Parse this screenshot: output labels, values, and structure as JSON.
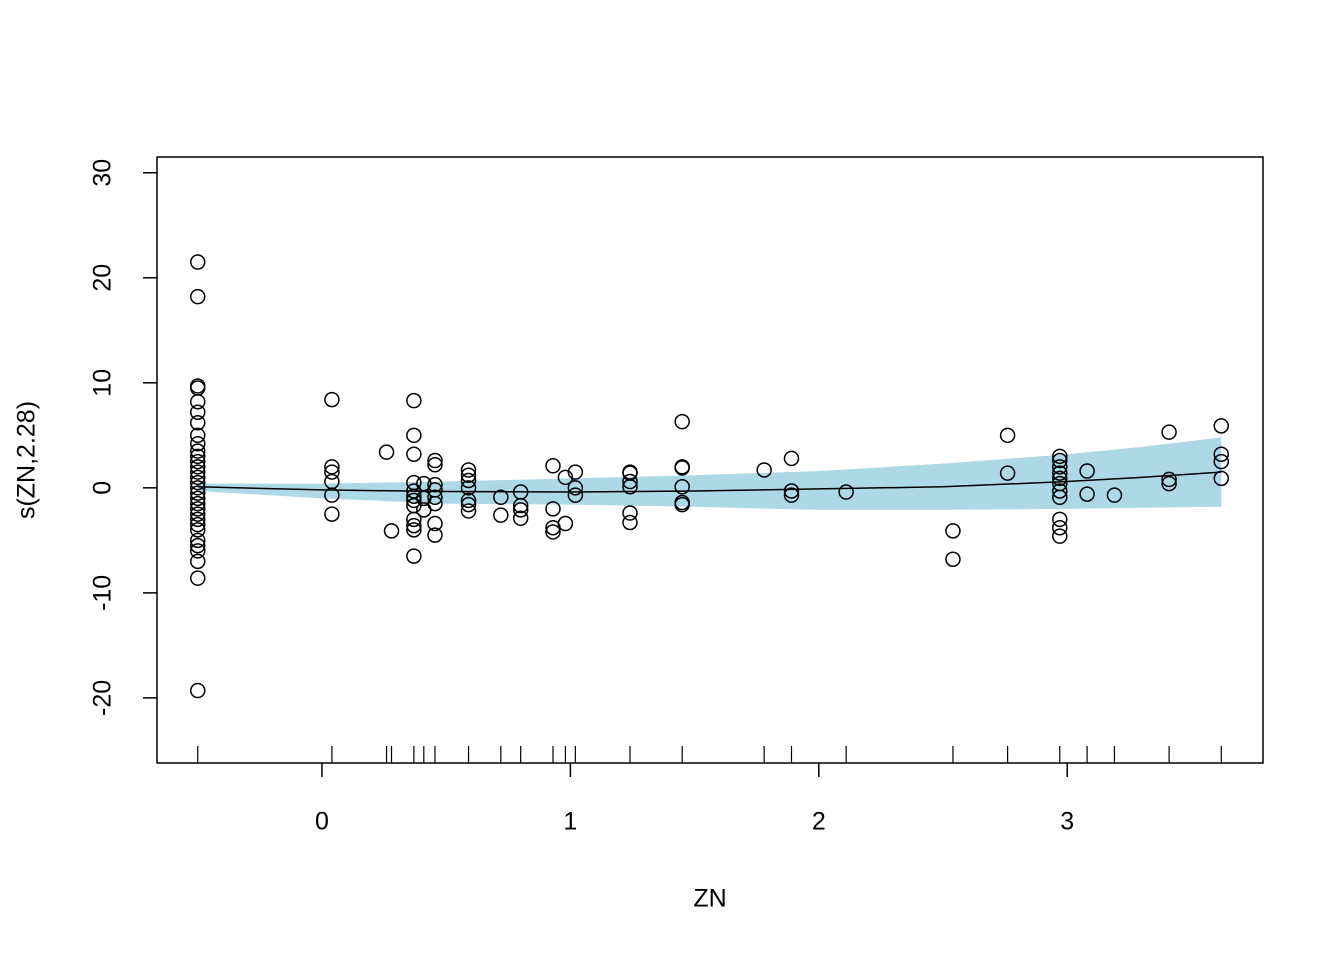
{
  "chart_data": {
    "type": "scatter",
    "x_label": "ZN",
    "y_label": "s(ZN,2.28)",
    "xlim": [
      -0.664,
      3.788
    ],
    "ylim": [
      -26.2,
      31.5
    ],
    "xticks": [
      0,
      1,
      2,
      3
    ],
    "yticks": [
      -20,
      -10,
      0,
      10,
      20,
      30
    ],
    "color": "#000000",
    "band_color": "#add8e6",
    "x": [
      -0.5,
      -0.5,
      -0.5,
      -0.5,
      -0.5,
      -0.5,
      -0.5,
      -0.5,
      -0.5,
      -0.5,
      -0.5,
      -0.5,
      -0.5,
      -0.5,
      -0.5,
      -0.5,
      -0.5,
      -0.5,
      -0.5,
      -0.5,
      -0.5,
      -0.5,
      -0.5,
      -0.5,
      -0.5,
      -0.5,
      -0.5,
      -0.5,
      -0.5,
      -0.5,
      -0.5,
      0.04,
      0.04,
      0.04,
      0.04,
      0.04,
      0.04,
      0.26,
      0.28,
      0.37,
      0.37,
      0.37,
      0.37,
      0.37,
      0.37,
      0.37,
      0.37,
      0.37,
      0.37,
      0.37,
      0.37,
      0.41,
      0.41,
      0.41,
      0.455,
      0.455,
      0.455,
      0.455,
      0.455,
      0.455,
      0.455,
      0.455,
      0.59,
      0.59,
      0.59,
      0.59,
      0.59,
      0.59,
      0.59,
      0.72,
      0.72,
      0.8,
      0.8,
      0.8,
      0.8,
      0.93,
      0.93,
      0.93,
      0.93,
      0.98,
      0.98,
      1.02,
      1.02,
      1.02,
      1.24,
      1.24,
      1.24,
      1.24,
      1.24,
      1.24,
      1.45,
      1.45,
      1.45,
      1.45,
      1.45,
      1.45,
      1.78,
      1.89,
      1.89,
      1.89,
      2.11,
      2.54,
      2.54,
      2.76,
      2.76,
      2.97,
      2.97,
      2.97,
      2.97,
      2.97,
      2.97,
      2.97,
      2.97,
      2.97,
      2.97,
      2.97,
      3.08,
      3.08,
      3.19,
      3.41,
      3.41,
      3.41,
      3.62,
      3.62,
      3.62,
      3.62
    ],
    "values": [
      21.5,
      18.2,
      9.7,
      9.5,
      8.2,
      7.2,
      6.2,
      5.0,
      4.2,
      3.5,
      3.0,
      2.5,
      2.0,
      1.5,
      1.0,
      0.5,
      0,
      -0.5,
      -1.0,
      -1.5,
      -2.0,
      -2.5,
      -3.0,
      -3.5,
      -4.0,
      -5.0,
      -5.5,
      -6.0,
      -7.0,
      -8.6,
      -19.3,
      2.0,
      1.5,
      0.6,
      -0.7,
      -2.5,
      8.4,
      3.4,
      -4.1,
      8.3,
      5.0,
      3.2,
      0.5,
      -0.3,
      -0.8,
      -1.2,
      -1.7,
      -3.0,
      -3.6,
      -4.0,
      -6.5,
      0.4,
      -1.0,
      -2.1,
      2.6,
      2.2,
      0.3,
      -0.2,
      -0.9,
      -1.5,
      -3.4,
      -4.5,
      1.7,
      1.2,
      0.7,
      0,
      -1.2,
      -1.6,
      -2.2,
      -0.9,
      -2.6,
      -0.4,
      -1.7,
      -2.1,
      -2.9,
      2.1,
      -2.0,
      -3.8,
      -4.2,
      1.0,
      -3.4,
      1.5,
      0,
      -0.7,
      1.5,
      1.4,
      0.6,
      0.1,
      -2.4,
      -3.3,
      6.3,
      2.0,
      1.9,
      0.1,
      -1.4,
      -1.6,
      1.7,
      2.8,
      -0.3,
      -0.7,
      -0.4,
      -4.1,
      -6.8,
      5.0,
      1.4,
      3.0,
      2.6,
      2.0,
      1.4,
      0.9,
      0.4,
      -0.3,
      -0.9,
      -3.0,
      -3.8,
      -4.6,
      1.6,
      -0.6,
      -0.7,
      5.3,
      0.8,
      0.4,
      5.9,
      3.2,
      2.5,
      0.9
    ],
    "fit": {
      "x": [
        -0.5,
        0,
        0.5,
        1,
        1.5,
        2,
        2.5,
        3,
        3.3,
        3.62
      ],
      "values": [
        0.1,
        -0.2,
        -0.35,
        -0.4,
        -0.3,
        -0.1,
        0.1,
        0.6,
        1.0,
        1.5
      ]
    },
    "band": {
      "x": [
        -0.5,
        0,
        0.5,
        1,
        1.5,
        2,
        2.5,
        3,
        3.3,
        3.62
      ],
      "upper": [
        0.4,
        0.4,
        0.6,
        0.9,
        1.2,
        1.6,
        2.3,
        3.2,
        3.9,
        4.8
      ],
      "lower": [
        -0.3,
        -1.0,
        -1.5,
        -1.6,
        -1.8,
        -2.1,
        -2.1,
        -2.0,
        -1.9,
        -1.8
      ]
    },
    "rug": [
      -0.5,
      0.04,
      0.26,
      0.28,
      0.37,
      0.41,
      0.455,
      0.59,
      0.72,
      0.8,
      0.93,
      0.98,
      1.02,
      1.24,
      1.45,
      1.78,
      1.89,
      2.11,
      2.54,
      2.76,
      2.97,
      3.08,
      3.19,
      3.41,
      3.62
    ]
  }
}
